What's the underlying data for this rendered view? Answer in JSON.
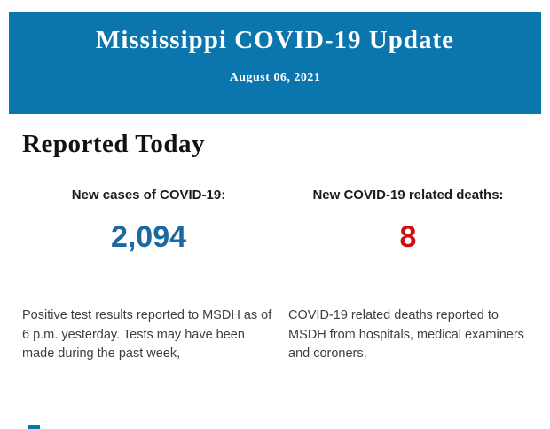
{
  "header": {
    "title": "Mississippi COVID-19 Update",
    "date": "August 06, 2021",
    "background_color": "#0b76ad",
    "text_color": "#ffffff"
  },
  "section": {
    "heading": "Reported Today"
  },
  "stats": [
    {
      "label": "New cases of COVID-19:",
      "value": "2,094",
      "value_color": "#1b699e",
      "description": "Positive test results reported to MSDH as of 6 p.m. yesterday. Tests may have been made during the past week,"
    },
    {
      "label": "New COVID-19 related deaths:",
      "value": "8",
      "value_color": "#cb0e11",
      "description": "COVID-19 related deaths reported to MSDH from hospitals, medical examiners and coroners."
    }
  ]
}
